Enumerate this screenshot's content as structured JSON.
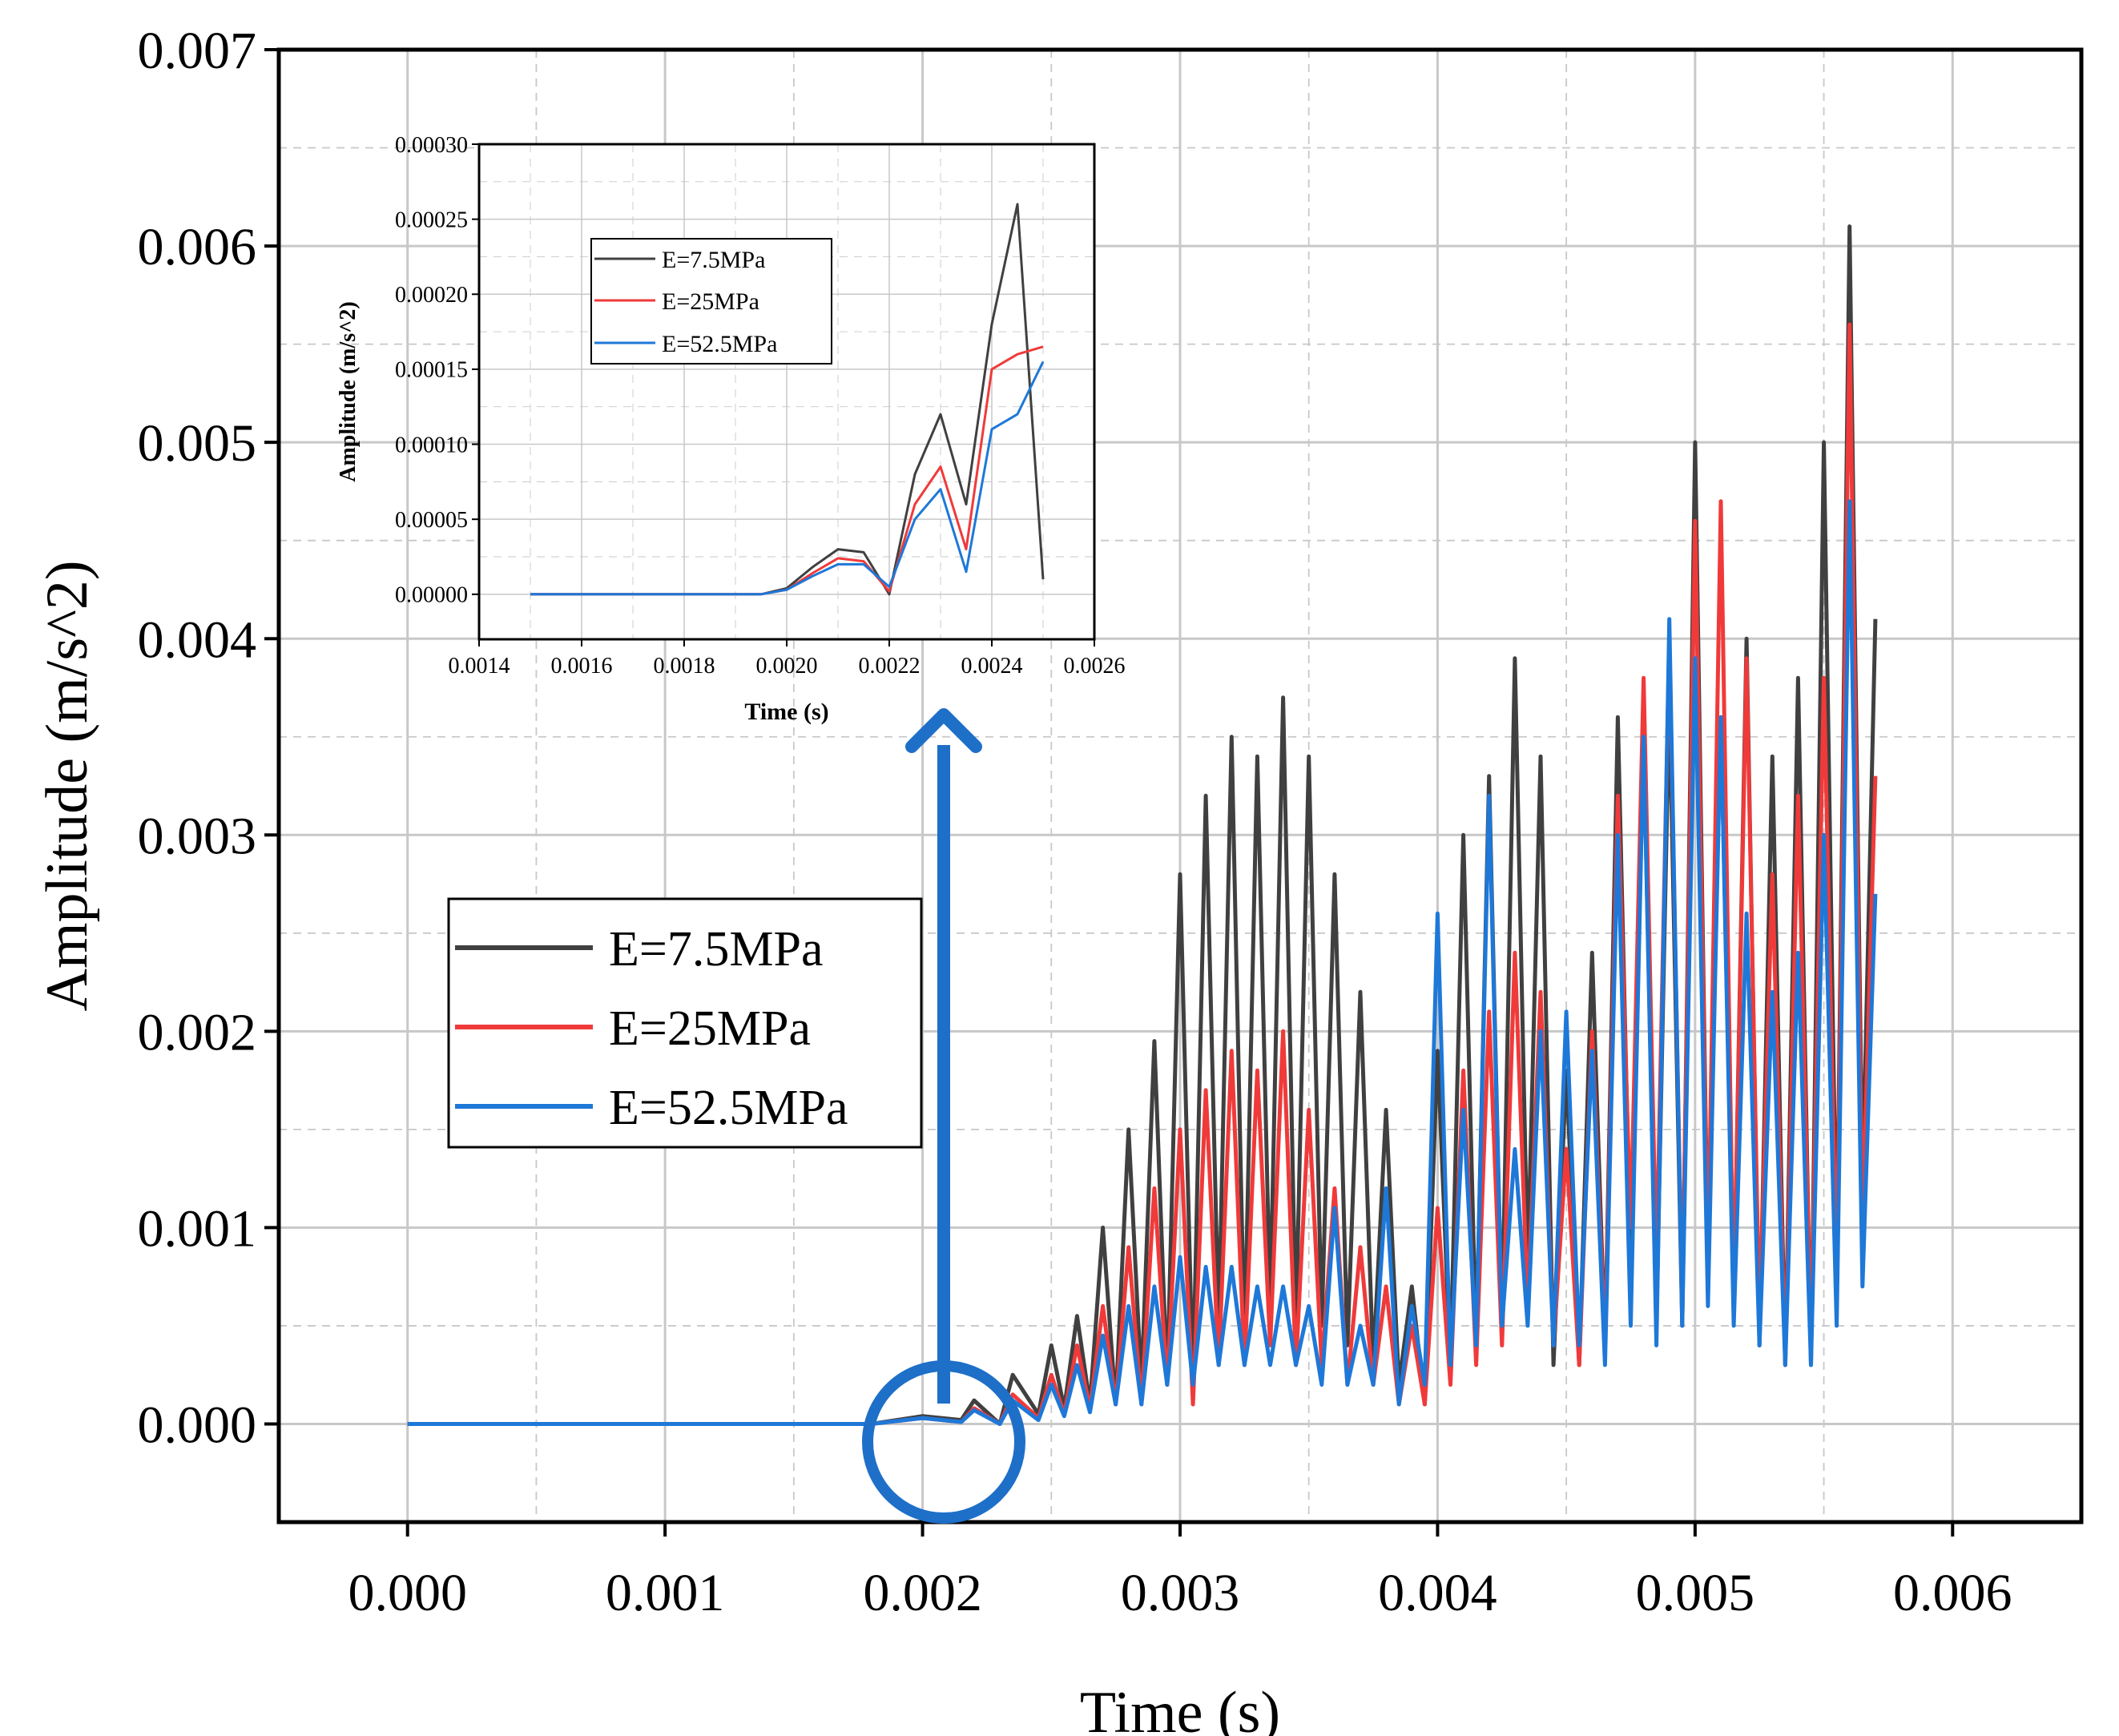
{
  "colors": {
    "black_series": "#404040",
    "red_series": "#f03a3a",
    "blue_series": "#1e78d8",
    "annotation": "#1e6fc8",
    "grid": "#c8c8c8",
    "axis": "#000000"
  },
  "chart_data": [
    {
      "id": "main",
      "type": "line",
      "title": "",
      "xlabel": "Time (s)",
      "ylabel": "Amplitude (m/s^2)",
      "xlim": [
        -0.0005,
        0.0065
      ],
      "ylim": [
        -0.0005,
        0.007
      ],
      "xticks": [
        "0.000",
        "0.001",
        "0.002",
        "0.003",
        "0.004",
        "0.005",
        "0.006"
      ],
      "xtick_values": [
        0,
        0.001,
        0.002,
        0.003,
        0.004,
        0.005,
        0.006
      ],
      "yticks": [
        "0.000",
        "0.001",
        "0.002",
        "0.003",
        "0.004",
        "0.005",
        "0.006",
        "0.007"
      ],
      "ytick_values": [
        0,
        0.001,
        0.002,
        0.003,
        0.004,
        0.005,
        0.006,
        0.007
      ],
      "grid": true,
      "legend_position": "middle-left",
      "series": [
        {
          "name": "E=7.5MPa",
          "color": "#404040",
          "x": [
            0,
            0.0018,
            0.002,
            0.00215,
            0.0022,
            0.0023,
            0.00235,
            0.00245,
            0.0025,
            0.00255,
            0.0026,
            0.00265,
            0.0027,
            0.00275,
            0.0028,
            0.00285,
            0.0029,
            0.00295,
            0.003,
            0.00305,
            0.0031,
            0.00315,
            0.0032,
            0.00325,
            0.0033,
            0.00335,
            0.0034,
            0.00345,
            0.0035,
            0.00355,
            0.0036,
            0.00365,
            0.0037,
            0.00375,
            0.0038,
            0.00385,
            0.0039,
            0.00395,
            0.004,
            0.00405,
            0.0041,
            0.00415,
            0.0042,
            0.00425,
            0.0043,
            0.00435,
            0.0044,
            0.00445,
            0.0045,
            0.00455,
            0.0046,
            0.00465,
            0.0047,
            0.00475,
            0.0048,
            0.00485,
            0.0049,
            0.00495,
            0.005,
            0.00505,
            0.0051,
            0.00515,
            0.0052,
            0.00525,
            0.0053,
            0.00535,
            0.0054,
            0.00545,
            0.0055,
            0.00555,
            0.0056,
            0.00565,
            0.0057
          ],
          "y": [
            0,
            0,
            4e-05,
            2e-05,
            0.00012,
            0,
            0.00025,
            5e-05,
            0.0004,
            8e-05,
            0.00055,
            0.0001,
            0.001,
            0.0001,
            0.0015,
            0.0002,
            0.00195,
            0.0002,
            0.0028,
            0.0002,
            0.0032,
            0.0005,
            0.0035,
            0.0004,
            0.0034,
            0.0006,
            0.0037,
            0.0005,
            0.0034,
            0.0005,
            0.0028,
            0.0004,
            0.0022,
            0.0003,
            0.0016,
            0.0002,
            0.0007,
            0.0001,
            0.0019,
            0.0003,
            0.003,
            0.0004,
            0.0033,
            0.0005,
            0.0039,
            0.0008,
            0.0034,
            0.0003,
            0.0018,
            0.0003,
            0.0024,
            0.0004,
            0.0036,
            0.0008,
            0.0035,
            0.0005,
            0.0037,
            0.0005,
            0.005,
            0.0008,
            0.0036,
            0.0006,
            0.004,
            0.0004,
            0.0034,
            0.0003,
            0.0038,
            0.0003,
            0.005,
            0.0008,
            0.0061,
            0.0012,
            0.0041
          ]
        },
        {
          "name": "E=25MPa",
          "color": "#f03a3a",
          "x": [
            0,
            0.0018,
            0.002,
            0.00215,
            0.0022,
            0.0023,
            0.00235,
            0.00245,
            0.0025,
            0.00255,
            0.0026,
            0.00265,
            0.0027,
            0.00275,
            0.0028,
            0.00285,
            0.0029,
            0.00295,
            0.003,
            0.00305,
            0.0031,
            0.00315,
            0.0032,
            0.00325,
            0.0033,
            0.00335,
            0.0034,
            0.00345,
            0.0035,
            0.00355,
            0.0036,
            0.00365,
            0.0037,
            0.00375,
            0.0038,
            0.00385,
            0.0039,
            0.00395,
            0.004,
            0.00405,
            0.0041,
            0.00415,
            0.0042,
            0.00425,
            0.0043,
            0.00435,
            0.0044,
            0.00445,
            0.0045,
            0.00455,
            0.0046,
            0.00465,
            0.0047,
            0.00475,
            0.0048,
            0.00485,
            0.0049,
            0.00495,
            0.005,
            0.00505,
            0.0051,
            0.00515,
            0.0052,
            0.00525,
            0.0053,
            0.00535,
            0.0054,
            0.00545,
            0.0055,
            0.00555,
            0.0056,
            0.00565,
            0.0057
          ],
          "y": [
            0,
            0,
            3e-05,
            1e-05,
            8e-05,
            0,
            0.00015,
            3e-05,
            0.00025,
            5e-05,
            0.0004,
            8e-05,
            0.0006,
            0.0001,
            0.0009,
            0.0001,
            0.0012,
            0.0002,
            0.0015,
            0.0001,
            0.0017,
            0.0003,
            0.0019,
            0.0003,
            0.0018,
            0.0004,
            0.002,
            0.0003,
            0.0016,
            0.0003,
            0.0012,
            0.0002,
            0.0009,
            0.0002,
            0.0007,
            0.0001,
            0.0005,
            0.0001,
            0.0011,
            0.0002,
            0.0018,
            0.0003,
            0.0021,
            0.0004,
            0.0024,
            0.0006,
            0.0022,
            0.0004,
            0.0014,
            0.0003,
            0.002,
            0.0004,
            0.0032,
            0.001,
            0.0038,
            0.0008,
            0.004,
            0.0006,
            0.0046,
            0.0008,
            0.0047,
            0.0006,
            0.0039,
            0.0005,
            0.0028,
            0.0003,
            0.0032,
            0.0004,
            0.0038,
            0.0007,
            0.0056,
            0.001,
            0.0033
          ]
        },
        {
          "name": "E=52.5MPa",
          "color": "#1e78d8",
          "x": [
            0,
            0.0018,
            0.002,
            0.00215,
            0.0022,
            0.0023,
            0.00235,
            0.00245,
            0.0025,
            0.00255,
            0.0026,
            0.00265,
            0.0027,
            0.00275,
            0.0028,
            0.00285,
            0.0029,
            0.00295,
            0.003,
            0.00305,
            0.0031,
            0.00315,
            0.0032,
            0.00325,
            0.0033,
            0.00335,
            0.0034,
            0.00345,
            0.0035,
            0.00355,
            0.0036,
            0.00365,
            0.0037,
            0.00375,
            0.0038,
            0.00385,
            0.0039,
            0.00395,
            0.004,
            0.00405,
            0.0041,
            0.00415,
            0.0042,
            0.00425,
            0.0043,
            0.00435,
            0.0044,
            0.00445,
            0.0045,
            0.00455,
            0.0046,
            0.00465,
            0.0047,
            0.00475,
            0.0048,
            0.00485,
            0.0049,
            0.00495,
            0.005,
            0.00505,
            0.0051,
            0.00515,
            0.0052,
            0.00525,
            0.0053,
            0.00535,
            0.0054,
            0.00545,
            0.0055,
            0.00555,
            0.0056,
            0.00565,
            0.0057
          ],
          "y": [
            0,
            0,
            3e-05,
            1e-05,
            7e-05,
            0,
            0.00012,
            2e-05,
            0.0002,
            4e-05,
            0.0003,
            6e-05,
            0.00045,
            0.0001,
            0.0006,
            0.0001,
            0.0007,
            0.0002,
            0.00085,
            0.0002,
            0.0008,
            0.0003,
            0.0008,
            0.0003,
            0.0007,
            0.0003,
            0.0007,
            0.0003,
            0.0006,
            0.0002,
            0.0011,
            0.0002,
            0.0005,
            0.0002,
            0.0012,
            0.0001,
            0.0006,
            0.0002,
            0.0026,
            0.0003,
            0.0016,
            0.0004,
            0.0032,
            0.0005,
            0.0014,
            0.0005,
            0.002,
            0.0004,
            0.0021,
            0.0004,
            0.0019,
            0.0003,
            0.003,
            0.0005,
            0.0035,
            0.0004,
            0.0041,
            0.0005,
            0.0039,
            0.0006,
            0.0036,
            0.0005,
            0.0026,
            0.0004,
            0.0022,
            0.0003,
            0.0024,
            0.0003,
            0.003,
            0.0005,
            0.0047,
            0.0007,
            0.0027
          ]
        }
      ]
    },
    {
      "id": "inset",
      "type": "line",
      "title": "",
      "xlabel": "Time (s)",
      "ylabel": "Amplitude (m/s^2)",
      "xlim": [
        0.0014,
        0.0026
      ],
      "ylim": [
        -3e-05,
        0.0003
      ],
      "xticks": [
        "0.0014",
        "0.0016",
        "0.0018",
        "0.0020",
        "0.0022",
        "0.0024",
        "0.0026"
      ],
      "xtick_values": [
        0.0014,
        0.0016,
        0.0018,
        0.002,
        0.0022,
        0.0024,
        0.0026
      ],
      "yticks": [
        "0.00000",
        "0.00005",
        "0.00010",
        "0.00015",
        "0.00020",
        "0.00025",
        "0.00030"
      ],
      "ytick_values": [
        0,
        5e-05,
        0.0001,
        0.00015,
        0.0002,
        0.00025,
        0.0003
      ],
      "grid": true,
      "legend_position": "top-left",
      "series": [
        {
          "name": "E=7.5MPa",
          "color": "#404040",
          "x": [
            0.0015,
            0.00195,
            0.002,
            0.00205,
            0.0021,
            0.00215,
            0.0022,
            0.00225,
            0.0023,
            0.00235,
            0.0024,
            0.00245,
            0.0025
          ],
          "y": [
            0,
            0,
            4e-06,
            1.8e-05,
            3e-05,
            2.8e-05,
            0,
            8e-05,
            0.00012,
            6e-05,
            0.00018,
            0.00026,
            1e-05
          ]
        },
        {
          "name": "E=25MPa",
          "color": "#f03a3a",
          "x": [
            0.0015,
            0.00195,
            0.002,
            0.00205,
            0.0021,
            0.00215,
            0.0022,
            0.00225,
            0.0023,
            0.00235,
            0.0024,
            0.00245,
            0.0025
          ],
          "y": [
            0,
            0,
            3e-06,
            1.4e-05,
            2.4e-05,
            2.2e-05,
            2e-06,
            6e-05,
            8.5e-05,
            3e-05,
            0.00015,
            0.00016,
            0.000165
          ]
        },
        {
          "name": "E=52.5MPa",
          "color": "#1e78d8",
          "x": [
            0.0015,
            0.00195,
            0.002,
            0.00205,
            0.0021,
            0.00215,
            0.0022,
            0.00225,
            0.0023,
            0.00235,
            0.0024,
            0.00245,
            0.0025
          ],
          "y": [
            0,
            0,
            3e-06,
            1.2e-05,
            2e-05,
            2e-05,
            5e-06,
            5e-05,
            7e-05,
            1.5e-05,
            0.00011,
            0.00012,
            0.000155
          ]
        }
      ]
    }
  ]
}
